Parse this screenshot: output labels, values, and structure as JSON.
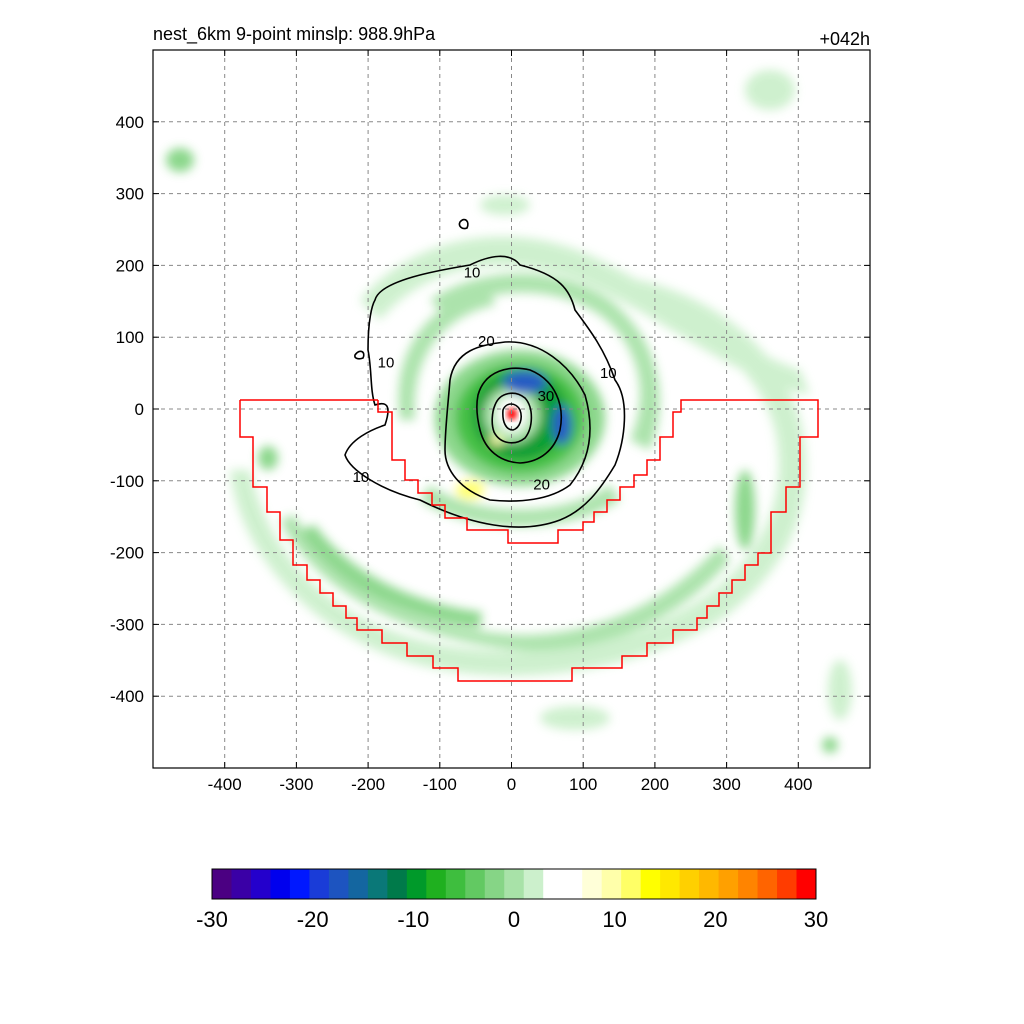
{
  "chart_data": {
    "type": "contour",
    "title_left": "nest_6km  9-point minslp: 988.9hPa",
    "title_right": "+042h",
    "xlim": [
      -500,
      500
    ],
    "ylim": [
      -500,
      500
    ],
    "x_ticks": [
      -400,
      -300,
      -200,
      -100,
      0,
      100,
      200,
      300,
      400
    ],
    "y_ticks": [
      400,
      300,
      200,
      100,
      0,
      -100,
      -200,
      -300,
      -400
    ],
    "grid": true,
    "colorbar": {
      "ticks": [
        -30,
        -20,
        -10,
        0,
        10,
        20,
        30
      ],
      "range": [
        -30,
        30
      ],
      "colors": [
        "#4b0082",
        "#3a00a6",
        "#2400cc",
        "#0000ee",
        "#0018ff",
        "#1a3cd8",
        "#1d54c0",
        "#1466a0",
        "#0a7878",
        "#007a4a",
        "#009a2a",
        "#1fb01f",
        "#3ebe3e",
        "#62c962",
        "#86d586",
        "#a8e2a8",
        "#ccf0cc",
        "#ffffff",
        "#ffffff",
        "#ffffd8",
        "#ffffaa",
        "#ffff66",
        "#ffff00",
        "#ffe800",
        "#ffd000",
        "#ffb800",
        "#ffa000",
        "#ff8400",
        "#ff6400",
        "#ff3c00",
        "#ff0000"
      ]
    },
    "contour_labels": [
      {
        "text": "10",
        "x": -55,
        "y": 190
      },
      {
        "text": "10",
        "x": -175,
        "y": 65
      },
      {
        "text": "10",
        "x": 135,
        "y": 50
      },
      {
        "text": "10",
        "x": -210,
        "y": -95
      },
      {
        "text": "20",
        "x": -35,
        "y": 95
      },
      {
        "text": "20",
        "x": 42,
        "y": -105
      },
      {
        "text": "30",
        "x": 48,
        "y": 18
      }
    ],
    "contour_levels": [
      10,
      20,
      30
    ],
    "center": {
      "x": 0,
      "y": -8
    }
  }
}
